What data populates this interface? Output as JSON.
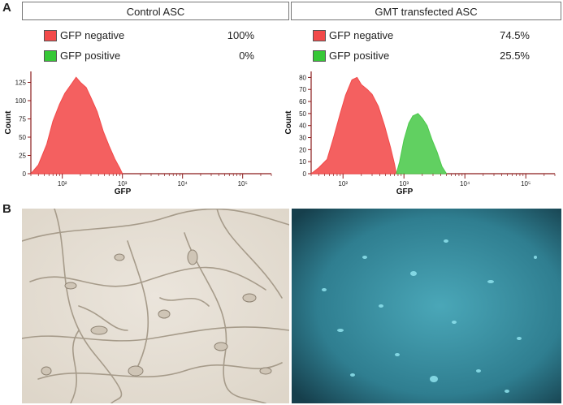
{
  "panel_a_label": "A",
  "panel_b_label": "B",
  "colors": {
    "negative": "#f24a4a",
    "positive": "#4bc94b",
    "axis": "#8a1a1a"
  },
  "charts": [
    {
      "title": "Control ASC",
      "legend": [
        {
          "name": "GFP negative",
          "pct": "100%",
          "color": "#f24a4a"
        },
        {
          "name": "GFP positive",
          "pct": "0%",
          "color": "#37c837"
        }
      ]
    },
    {
      "title": "GMT transfected ASC",
      "legend": [
        {
          "name": "GFP negative",
          "pct": "74.5%",
          "color": "#f24a4a"
        },
        {
          "name": "GFP positive",
          "pct": "25.5%",
          "color": "#37c837"
        }
      ]
    }
  ],
  "chart_data": [
    {
      "type": "area",
      "title": "Control ASC",
      "xlabel": "GFP",
      "ylabel": "Count",
      "x_scale": "log",
      "xlim": [
        30,
        300000
      ],
      "ylim": [
        0,
        140
      ],
      "yticks": [
        "0",
        "25",
        "50",
        "75",
        "100",
        "125"
      ],
      "xticks": [
        "10²",
        "10³",
        "10⁴",
        "10⁵"
      ],
      "series": [
        {
          "name": "GFP negative",
          "x": [
            30,
            40,
            55,
            70,
            90,
            110,
            140,
            170,
            200,
            250,
            300,
            380,
            480,
            600,
            750,
            900,
            1000
          ],
          "y": [
            0,
            12,
            40,
            72,
            95,
            110,
            122,
            132,
            125,
            118,
            104,
            85,
            58,
            38,
            20,
            8,
            0
          ]
        }
      ]
    },
    {
      "type": "area",
      "title": "GMT transfected ASC",
      "xlabel": "GFP",
      "ylabel": "Count",
      "x_scale": "log",
      "xlim": [
        30,
        300000
      ],
      "ylim": [
        0,
        85
      ],
      "yticks": [
        "0",
        "10",
        "20",
        "30",
        "40",
        "50",
        "60",
        "70",
        "80"
      ],
      "xticks": [
        "10²",
        "10³",
        "10⁴",
        "10⁵"
      ],
      "series": [
        {
          "name": "GFP negative",
          "x": [
            30,
            40,
            55,
            70,
            90,
            110,
            140,
            170,
            200,
            250,
            300,
            380,
            480,
            600,
            700,
            750
          ],
          "y": [
            0,
            5,
            12,
            30,
            50,
            65,
            78,
            80,
            74,
            70,
            66,
            56,
            40,
            22,
            8,
            0
          ]
        },
        {
          "name": "GFP positive",
          "x": [
            750,
            850,
            1000,
            1200,
            1400,
            1700,
            2000,
            2400,
            2900,
            3500,
            4200,
            5000
          ],
          "y": [
            0,
            10,
            28,
            42,
            48,
            50,
            46,
            40,
            28,
            18,
            6,
            0
          ]
        }
      ]
    }
  ]
}
